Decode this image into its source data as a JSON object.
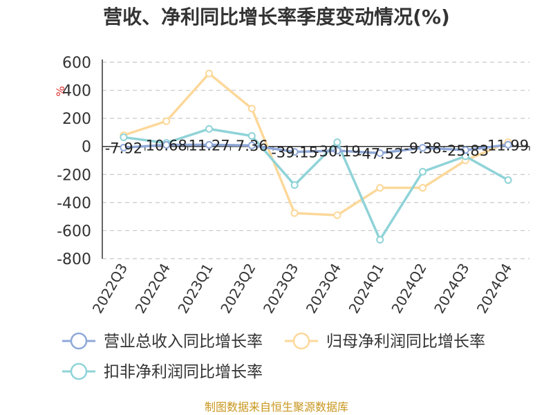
{
  "chart_data": {
    "type": "line",
    "title": "营收、净利同比增长率季度变动情况(%)",
    "ylabel": "%",
    "categories": [
      "2022Q3",
      "2022Q4",
      "2023Q1",
      "2023Q2",
      "2023Q3",
      "2023Q4",
      "2024Q1",
      "2024Q2",
      "2024Q3",
      "2024Q4"
    ],
    "ylim": [
      -800,
      600
    ],
    "yticks": [
      600,
      400,
      200,
      0,
      -200,
      -400,
      -600,
      -800
    ],
    "grid": true,
    "legend_position": "bottom",
    "series": [
      {
        "name": "营业总收入同比增长率",
        "color": "#8fa8d8",
        "values": [
          -7.92,
          10.68,
          11.27,
          7.36,
          -39.15,
          -30.19,
          -47.52,
          -9.38,
          -25.83,
          11.99
        ],
        "labels": [
          "-7.92",
          "10.68",
          "11.27",
          "7.36",
          "-39.15",
          "-30.19",
          "-47.52",
          "-9.38",
          "-25.83",
          "11.99"
        ]
      },
      {
        "name": "归母净利润同比增长率",
        "color": "#fcd89a",
        "values": [
          80,
          180,
          520,
          270,
          -475,
          -490,
          -295,
          -295,
          -100,
          30
        ]
      },
      {
        "name": "扣非净利润同比增长率",
        "color": "#8fd3d8",
        "values": [
          65,
          25,
          125,
          75,
          -275,
          30,
          -665,
          -180,
          -70,
          -240
        ]
      }
    ]
  },
  "source": "制图数据来自恒生聚源数据库"
}
